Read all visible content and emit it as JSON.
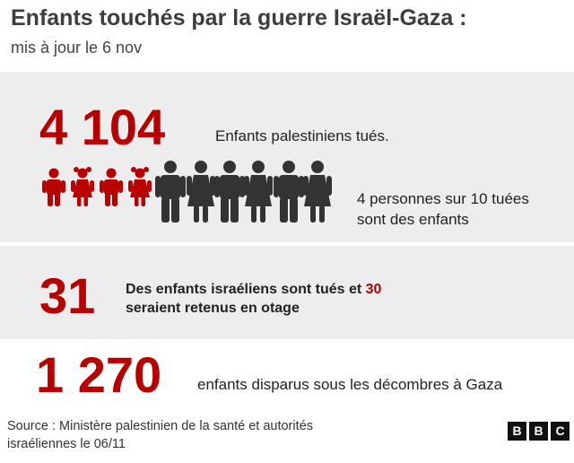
{
  "header": {
    "title": "Enfants touchés par la guerre Israël-Gaza :",
    "subtitle": "mis à jour le 6 nov"
  },
  "stats": [
    {
      "value": "4 104",
      "label": "Enfants palestiniens tués.",
      "ratio_line1": "4 personnes sur 10 tuées",
      "ratio_line2": "sont des enfants"
    },
    {
      "value": "31",
      "text_line1_before": "Des enfants israéliens sont tués et ",
      "highlight": "30",
      "text_line2": "seraient retenus en otage"
    },
    {
      "value": "1 270",
      "label": "enfants disparus sous les décombres à Gaza"
    }
  ],
  "pictogram": {
    "children_icons": 4,
    "adult_icons": 6,
    "children_share": "4 sur 10",
    "child_color": "#b80000",
    "adult_color": "#333333"
  },
  "footer": {
    "source_line1": "Source : Ministère palestinien de la santé et autorités",
    "source_line2": "israéliennes le 06/11",
    "logo": [
      "B",
      "B",
      "C"
    ]
  },
  "colors": {
    "accent": "#b80000",
    "panel": "#ededed"
  }
}
